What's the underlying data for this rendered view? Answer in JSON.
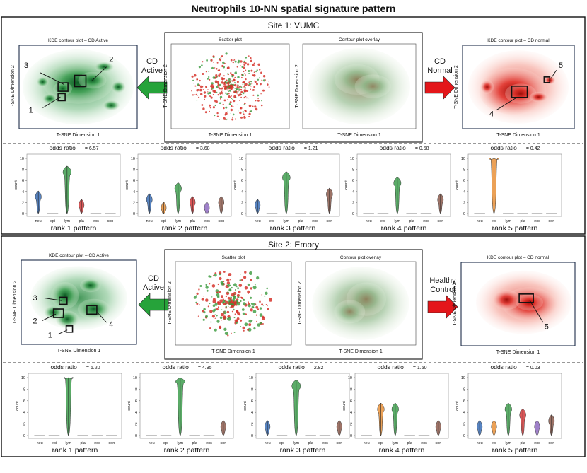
{
  "title": "Neutrophils 10-NN spatial signature pattern",
  "axis": {
    "x": "T-SNE Dimension 1",
    "y": "T-SNE Dimension 2",
    "count": "count",
    "odds_label": "odds ratio"
  },
  "categories": [
    "neu",
    "epi",
    "lym",
    "pla",
    "eos",
    "con"
  ],
  "colors": {
    "neu": "#3b6fb6",
    "epi": "#e8913a",
    "lym": "#3e9e4e",
    "pla": "#d2393b",
    "eos": "#8e6bbf",
    "con": "#8c5a4c",
    "green": "#2e8b3e",
    "red": "#e0231c"
  },
  "sites": [
    {
      "name": "Site 1: VUMC",
      "left_panel": "KDE contour plot – CD Active",
      "scatter": "Scatter plot",
      "overlay": "Contour plot overlay",
      "right_panel": "KDE contour plot – CD normal",
      "left_arrow": [
        "CD",
        "Active"
      ],
      "right_arrow": [
        "CD",
        "Normal"
      ],
      "left_labels": [
        "1",
        "2",
        "3"
      ],
      "right_labels": [
        "4",
        "5"
      ],
      "ranks": [
        {
          "label": "rank 1 pattern",
          "odds": "= 6.57",
          "ymax": 10,
          "ticks": [
            0,
            2,
            4,
            6,
            8,
            10
          ]
        },
        {
          "label": "rank 2 pattern",
          "odds": "= 3.68",
          "ymax": 10,
          "ticks": [
            0,
            2,
            4,
            6,
            8,
            10
          ]
        },
        {
          "label": "rank 3 pattern",
          "odds": "= 1.21",
          "ymax": 10,
          "ticks": [
            0,
            2,
            4,
            6,
            8,
            10
          ]
        },
        {
          "label": "rank 4 pattern",
          "odds": "= 0.58",
          "ymax": 10,
          "ticks": [
            0,
            2,
            4,
            6,
            8,
            10
          ]
        },
        {
          "label": "rank 5 pattern",
          "odds": "= 0.42",
          "ymax": 10,
          "ticks": [
            0,
            2,
            4,
            6,
            8,
            10
          ]
        }
      ]
    },
    {
      "name": "Site 2: Emory",
      "left_panel": "KDE contour plot – CD Active",
      "scatter": "Scatter plot",
      "overlay": "Contour plot overlay",
      "right_panel": "KDE contour plot – CD normal",
      "left_arrow": [
        "CD",
        "Active"
      ],
      "right_arrow": [
        "Healthy",
        "Control"
      ],
      "left_labels": [
        "1",
        "2",
        "3",
        "4"
      ],
      "right_labels": [
        "5"
      ],
      "ranks": [
        {
          "label": "rank 1 pattern",
          "odds": "= 6.20",
          "ymax": 10,
          "ticks": [
            0,
            2,
            4,
            6,
            8,
            10
          ]
        },
        {
          "label": "rank 2 pattern",
          "odds": "= 4.95",
          "ymax": 10,
          "ticks": [
            0,
            2,
            4,
            6,
            8,
            10
          ]
        },
        {
          "label": "rank 3 pattern",
          "odds": "2.82",
          "ymax": 10,
          "ticks": [
            0,
            2,
            4,
            6,
            8,
            10
          ]
        },
        {
          "label": "rank 4 pattern",
          "odds": "= 1.50",
          "ymax": 10,
          "ticks": [
            0,
            2,
            4,
            6,
            8,
            10
          ]
        },
        {
          "label": "rank 5 pattern",
          "odds": "= 0.03",
          "ymax": 10,
          "ticks": [
            0,
            2,
            4,
            6,
            8,
            10
          ]
        }
      ]
    }
  ],
  "chart_data": [
    {
      "type": "violin",
      "title": "Site 1 rank 1 pattern",
      "categories": [
        "neu",
        "epi",
        "lym",
        "pla",
        "eos",
        "con"
      ],
      "values": [
        2.5,
        0,
        7,
        1,
        0,
        0
      ],
      "ylim": [
        0,
        10
      ],
      "ylabel": "count"
    },
    {
      "type": "violin",
      "title": "Site 1 rank 2 pattern",
      "categories": [
        "neu",
        "epi",
        "lym",
        "pla",
        "eos",
        "con"
      ],
      "values": [
        2,
        0.5,
        4,
        1.5,
        0.5,
        1.5
      ],
      "ylim": [
        0,
        10
      ],
      "ylabel": "count"
    },
    {
      "type": "violin",
      "title": "Site 1 rank 3 pattern",
      "categories": [
        "neu",
        "epi",
        "lym",
        "pla",
        "eos",
        "con"
      ],
      "values": [
        1,
        0,
        6,
        0,
        0,
        3
      ],
      "ylim": [
        0,
        10
      ],
      "ylabel": "count"
    },
    {
      "type": "violin",
      "title": "Site 1 rank 4 pattern",
      "categories": [
        "neu",
        "epi",
        "lym",
        "pla",
        "eos",
        "con"
      ],
      "values": [
        0,
        0,
        5,
        0,
        0,
        2
      ],
      "ylim": [
        0,
        10
      ],
      "ylabel": "count"
    },
    {
      "type": "violin",
      "title": "Site 1 rank 5 pattern",
      "categories": [
        "neu",
        "epi",
        "lym",
        "pla",
        "eos",
        "con"
      ],
      "values": [
        0,
        10,
        0,
        0,
        0,
        0
      ],
      "ylim": [
        0,
        10
      ],
      "ylabel": "count"
    },
    {
      "type": "violin",
      "title": "Site 2 rank 1 pattern",
      "categories": [
        "neu",
        "epi",
        "lym",
        "pla",
        "eos",
        "con"
      ],
      "values": [
        0,
        0,
        10,
        0,
        0,
        0
      ],
      "ylim": [
        0,
        10
      ],
      "ylabel": "count"
    },
    {
      "type": "violin",
      "title": "Site 2 rank 2 pattern",
      "categories": [
        "neu",
        "epi",
        "lym",
        "pla",
        "eos",
        "con"
      ],
      "values": [
        0,
        0,
        9,
        0,
        0,
        1
      ],
      "ylim": [
        0,
        10
      ],
      "ylabel": "count"
    },
    {
      "type": "violin",
      "title": "Site 2 rank 3 pattern",
      "categories": [
        "neu",
        "epi",
        "lym",
        "pla",
        "eos",
        "con"
      ],
      "values": [
        1,
        0,
        8,
        0,
        0,
        1
      ],
      "ylim": [
        0,
        10
      ],
      "ylabel": "count"
    },
    {
      "type": "violin",
      "title": "Site 2 rank 4 pattern",
      "categories": [
        "neu",
        "epi",
        "lym",
        "pla",
        "eos",
        "con"
      ],
      "values": [
        0,
        4,
        4,
        0,
        0,
        1
      ],
      "ylim": [
        0,
        10
      ],
      "ylabel": "count"
    },
    {
      "type": "violin",
      "title": "Site 2 rank 5 pattern",
      "categories": [
        "neu",
        "epi",
        "lym",
        "pla",
        "eos",
        "con"
      ],
      "values": [
        1,
        1,
        4,
        3,
        1,
        2
      ],
      "ylim": [
        0,
        10
      ],
      "ylabel": "count"
    }
  ]
}
